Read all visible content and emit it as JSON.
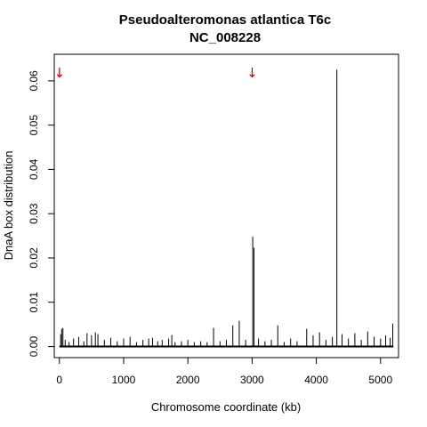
{
  "chart_data": {
    "type": "bar",
    "title": "Pseudoalteromonas atlantica T6c",
    "subtitle": "NC_008228",
    "xlabel": "Chromosome coordinate (kb)",
    "ylabel": "DnaA box distribution",
    "xlim": [
      -80,
      5280
    ],
    "ylim": [
      -0.0025,
      0.066
    ],
    "x_ticks": [
      0,
      1000,
      2000,
      3000,
      4000,
      5000
    ],
    "x_tick_labels": [
      "0",
      "1000",
      "2000",
      "3000",
      "4000",
      "5000"
    ],
    "y_ticks": [
      0.0,
      0.01,
      0.02,
      0.03,
      0.04,
      0.05,
      0.06
    ],
    "y_tick_labels": [
      "0.00",
      "0.01",
      "0.02",
      "0.03",
      "0.04",
      "0.05",
      "0.06"
    ],
    "grid": false,
    "line_color": "#000000",
    "marker_color": "#cc0000",
    "markers": [
      {
        "x": 0,
        "symbol": "↓"
      },
      {
        "x": 3000,
        "symbol": "↓"
      }
    ],
    "values": [
      {
        "x": 20,
        "y": 0.0028
      },
      {
        "x": 35,
        "y": 0.004
      },
      {
        "x": 55,
        "y": 0.0042
      },
      {
        "x": 90,
        "y": 0.0015
      },
      {
        "x": 150,
        "y": 0.001
      },
      {
        "x": 220,
        "y": 0.0018
      },
      {
        "x": 300,
        "y": 0.0022
      },
      {
        "x": 380,
        "y": 0.0012
      },
      {
        "x": 430,
        "y": 0.003
      },
      {
        "x": 500,
        "y": 0.0025
      },
      {
        "x": 560,
        "y": 0.0032
      },
      {
        "x": 600,
        "y": 0.0028
      },
      {
        "x": 700,
        "y": 0.0015
      },
      {
        "x": 800,
        "y": 0.002
      },
      {
        "x": 900,
        "y": 0.0012
      },
      {
        "x": 1000,
        "y": 0.0018
      },
      {
        "x": 1100,
        "y": 0.0022
      },
      {
        "x": 1200,
        "y": 0.001
      },
      {
        "x": 1300,
        "y": 0.0015
      },
      {
        "x": 1390,
        "y": 0.0018
      },
      {
        "x": 1450,
        "y": 0.002
      },
      {
        "x": 1530,
        "y": 0.0012
      },
      {
        "x": 1600,
        "y": 0.0015
      },
      {
        "x": 1700,
        "y": 0.0018
      },
      {
        "x": 1750,
        "y": 0.0026
      },
      {
        "x": 1800,
        "y": 0.001
      },
      {
        "x": 1900,
        "y": 0.0012
      },
      {
        "x": 2000,
        "y": 0.0015
      },
      {
        "x": 2100,
        "y": 0.001
      },
      {
        "x": 2200,
        "y": 0.0012
      },
      {
        "x": 2300,
        "y": 0.001
      },
      {
        "x": 2400,
        "y": 0.0042
      },
      {
        "x": 2500,
        "y": 0.0012
      },
      {
        "x": 2600,
        "y": 0.0015
      },
      {
        "x": 2700,
        "y": 0.0048
      },
      {
        "x": 2800,
        "y": 0.0058
      },
      {
        "x": 2900,
        "y": 0.0015
      },
      {
        "x": 3010,
        "y": 0.0248
      },
      {
        "x": 3030,
        "y": 0.0223
      },
      {
        "x": 3100,
        "y": 0.0018
      },
      {
        "x": 3200,
        "y": 0.0012
      },
      {
        "x": 3300,
        "y": 0.0015
      },
      {
        "x": 3400,
        "y": 0.0048
      },
      {
        "x": 3500,
        "y": 0.001
      },
      {
        "x": 3600,
        "y": 0.0018
      },
      {
        "x": 3700,
        "y": 0.0012
      },
      {
        "x": 3850,
        "y": 0.004
      },
      {
        "x": 3950,
        "y": 0.0025
      },
      {
        "x": 4050,
        "y": 0.0032
      },
      {
        "x": 4150,
        "y": 0.0015
      },
      {
        "x": 4250,
        "y": 0.0022
      },
      {
        "x": 4320,
        "y": 0.0625
      },
      {
        "x": 4400,
        "y": 0.0028
      },
      {
        "x": 4500,
        "y": 0.0018
      },
      {
        "x": 4600,
        "y": 0.003
      },
      {
        "x": 4700,
        "y": 0.0015
      },
      {
        "x": 4800,
        "y": 0.0034
      },
      {
        "x": 4900,
        "y": 0.0022
      },
      {
        "x": 5000,
        "y": 0.0018
      },
      {
        "x": 5080,
        "y": 0.0025
      },
      {
        "x": 5150,
        "y": 0.002
      },
      {
        "x": 5190,
        "y": 0.0052
      }
    ]
  }
}
